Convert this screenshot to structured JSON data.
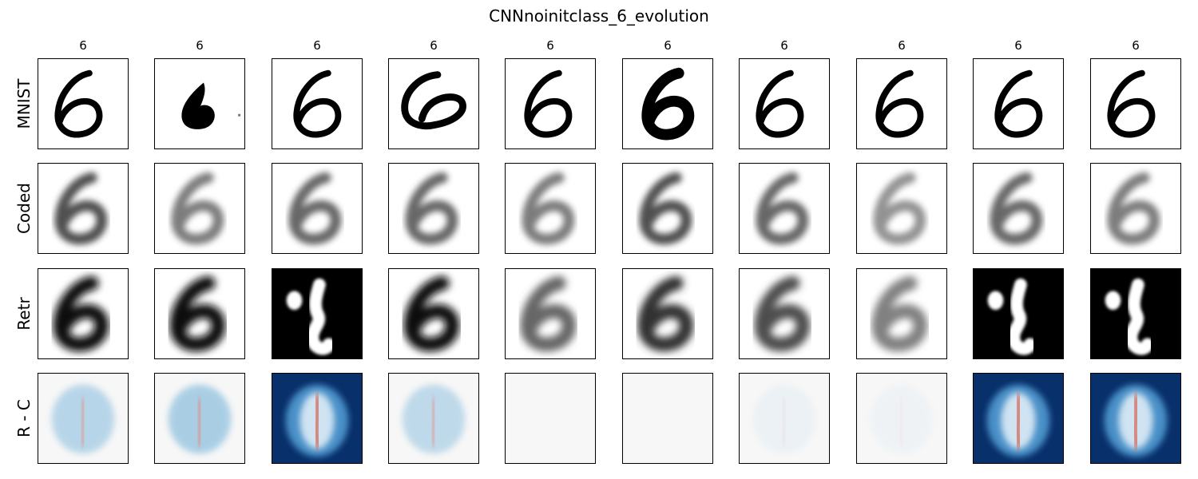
{
  "chart_data": {
    "type": "image-grid",
    "title": "CNNnoinitclass_6_evolution",
    "column_titles": [
      "6",
      "6",
      "6",
      "6",
      "6",
      "6",
      "6",
      "6",
      "6",
      "6"
    ],
    "row_labels": [
      "MNIST",
      "Coded",
      "Retr",
      "R - C"
    ],
    "colormaps": {
      "MNIST": "gray_r",
      "Coded": "gray_r",
      "Retr": "gray_r",
      "R - C": "RdBu_r"
    },
    "panels": {
      "MNIST": [
        {
          "style": "plain"
        },
        {
          "style": "blob"
        },
        {
          "style": "plain"
        },
        {
          "style": "wide"
        },
        {
          "style": "plain"
        },
        {
          "style": "bold"
        },
        {
          "style": "plain"
        },
        {
          "style": "plain"
        },
        {
          "style": "plain"
        },
        {
          "style": "plain"
        }
      ],
      "Coded": [
        {
          "intensity": 0.8
        },
        {
          "intensity": 0.6
        },
        {
          "intensity": 0.7
        },
        {
          "intensity": 0.7
        },
        {
          "intensity": 0.6
        },
        {
          "intensity": 0.8
        },
        {
          "intensity": 0.7
        },
        {
          "intensity": 0.5
        },
        {
          "intensity": 0.7
        },
        {
          "intensity": 0.6
        }
      ],
      "Retr": [
        {
          "inverted": false,
          "intensity": 0.95
        },
        {
          "inverted": false,
          "intensity": 0.95
        },
        {
          "inverted": true,
          "intensity": 1.0
        },
        {
          "inverted": false,
          "intensity": 0.95
        },
        {
          "inverted": false,
          "intensity": 0.6
        },
        {
          "inverted": false,
          "intensity": 0.8
        },
        {
          "inverted": false,
          "intensity": 0.7
        },
        {
          "inverted": false,
          "intensity": 0.5
        },
        {
          "inverted": true,
          "intensity": 1.0
        },
        {
          "inverted": true,
          "intensity": 1.0
        }
      ],
      "R - C": [
        {
          "level": 0.45
        },
        {
          "level": 0.55
        },
        {
          "level": 1.0
        },
        {
          "level": 0.4
        },
        {
          "level": 0.0
        },
        {
          "level": 0.0
        },
        {
          "level": 0.08
        },
        {
          "level": 0.06
        },
        {
          "level": 1.0
        },
        {
          "level": 1.0
        }
      ]
    }
  }
}
